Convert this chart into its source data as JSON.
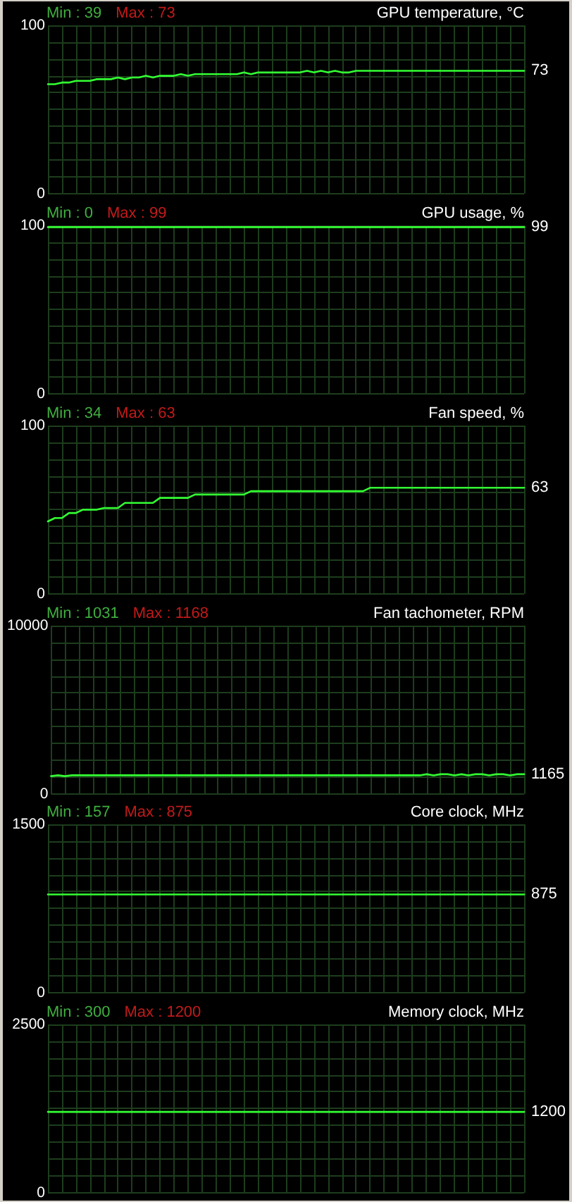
{
  "chart_data": [
    {
      "type": "line",
      "title": "GPU temperature, °C",
      "annotations": [
        "Min : 39",
        "Max : 73"
      ],
      "categories": [
        null,
        null,
        null,
        null,
        null,
        null,
        null,
        null,
        null,
        null,
        null,
        null,
        null,
        null,
        null,
        null,
        null,
        null,
        null,
        null,
        null,
        null,
        null,
        null,
        null,
        null,
        null,
        null,
        null,
        null,
        null,
        null,
        null,
        null,
        null,
        null,
        null,
        null,
        null,
        null,
        null,
        null,
        null,
        null,
        null,
        null,
        null,
        null,
        null,
        null,
        null,
        null,
        null,
        null,
        null,
        null,
        null,
        null,
        null,
        null,
        null,
        null,
        null,
        null,
        null,
        null,
        null,
        null,
        null
      ],
      "values": [
        65,
        65,
        66,
        66,
        67,
        67,
        67,
        68,
        68,
        68,
        69,
        68,
        69,
        69,
        70,
        69,
        70,
        70,
        70,
        71,
        70,
        71,
        71,
        71,
        71,
        71,
        71,
        71,
        72,
        71,
        72,
        72,
        72,
        72,
        72,
        72,
        72,
        73,
        72,
        73,
        72,
        73,
        72,
        72,
        73,
        73,
        73,
        73,
        73,
        73,
        73,
        73,
        73,
        73,
        73,
        73,
        73,
        73,
        73,
        73,
        73,
        73,
        73,
        73,
        73,
        73,
        73,
        73,
        73
      ],
      "value_labels": [
        null,
        null,
        null,
        null,
        null,
        null,
        null,
        null,
        null,
        null,
        null,
        null,
        null,
        null,
        null,
        null,
        null,
        null,
        null,
        null,
        null,
        null,
        null,
        null,
        null,
        null,
        null,
        null,
        null,
        null,
        null,
        null,
        null,
        null,
        null,
        null,
        null,
        null,
        null,
        null,
        null,
        null,
        null,
        null,
        null,
        null,
        null,
        null,
        null,
        null,
        null,
        null,
        null,
        null,
        null,
        null,
        null,
        null,
        null,
        null,
        null,
        null,
        null,
        null,
        null,
        null,
        null,
        null,
        "73"
      ],
      "color": "#33ff33",
      "ylim": [
        0,
        100
      ],
      "yticks": [
        0,
        {
          "value": 10,
          "label": null
        },
        {
          "value": 20,
          "label": null
        },
        {
          "value": 30,
          "label": null
        },
        {
          "value": 40,
          "label": null
        },
        {
          "value": 50,
          "label": null
        },
        {
          "value": 60,
          "label": null
        },
        {
          "value": 70,
          "label": null
        },
        {
          "value": 80,
          "label": null
        },
        {
          "value": 90,
          "label": null
        },
        100
      ],
      "grid": true,
      "tick_labels": "y",
      "marker": "none"
    },
    {
      "type": "line",
      "title": "GPU usage, %",
      "annotations": [
        "Min : 0",
        "Max : 99"
      ],
      "categories": [
        null,
        null,
        null,
        null,
        null,
        null,
        null,
        null,
        null,
        null,
        null,
        null,
        null,
        null,
        null,
        null,
        null,
        null,
        null,
        null,
        null,
        null,
        null,
        null,
        null,
        null,
        null,
        null,
        null,
        null,
        null,
        null,
        null,
        null,
        null,
        null,
        null,
        null,
        null,
        null,
        null,
        null,
        null,
        null,
        null,
        null,
        null,
        null,
        null,
        null,
        null,
        null,
        null,
        null,
        null,
        null,
        null,
        null,
        null,
        null,
        null,
        null,
        null,
        null,
        null,
        null,
        null,
        null,
        null
      ],
      "values": [
        99,
        99,
        99,
        99,
        99,
        99,
        99,
        99,
        99,
        99,
        99,
        99,
        99,
        99,
        99,
        99,
        99,
        99,
        99,
        99,
        99,
        99,
        99,
        99,
        99,
        99,
        99,
        99,
        99,
        99,
        99,
        99,
        99,
        99,
        99,
        99,
        99,
        99,
        99,
        99,
        99,
        99,
        99,
        99,
        99,
        99,
        99,
        99,
        99,
        99,
        99,
        99,
        99,
        99,
        99,
        99,
        99,
        99,
        99,
        99,
        99,
        99,
        99,
        99,
        99,
        99,
        99,
        99,
        99
      ],
      "value_labels": [
        null,
        null,
        null,
        null,
        null,
        null,
        null,
        null,
        null,
        null,
        null,
        null,
        null,
        null,
        null,
        null,
        null,
        null,
        null,
        null,
        null,
        null,
        null,
        null,
        null,
        null,
        null,
        null,
        null,
        null,
        null,
        null,
        null,
        null,
        null,
        null,
        null,
        null,
        null,
        null,
        null,
        null,
        null,
        null,
        null,
        null,
        null,
        null,
        null,
        null,
        null,
        null,
        null,
        null,
        null,
        null,
        null,
        null,
        null,
        null,
        null,
        null,
        null,
        null,
        null,
        null,
        null,
        null,
        "99"
      ],
      "color": "#33ff33",
      "ylim": [
        0,
        100
      ],
      "yticks": [
        0,
        {
          "value": 10,
          "label": null
        },
        {
          "value": 20,
          "label": null
        },
        {
          "value": 30,
          "label": null
        },
        {
          "value": 40,
          "label": null
        },
        {
          "value": 50,
          "label": null
        },
        {
          "value": 60,
          "label": null
        },
        {
          "value": 70,
          "label": null
        },
        {
          "value": 80,
          "label": null
        },
        {
          "value": 90,
          "label": null
        },
        100
      ],
      "grid": true,
      "tick_labels": "y",
      "marker": "none"
    },
    {
      "type": "line",
      "title": "Fan speed, %",
      "annotations": [
        "Min : 34",
        "Max : 63"
      ],
      "categories": [
        null,
        null,
        null,
        null,
        null,
        null,
        null,
        null,
        null,
        null,
        null,
        null,
        null,
        null,
        null,
        null,
        null,
        null,
        null,
        null,
        null,
        null,
        null,
        null,
        null,
        null,
        null,
        null,
        null,
        null,
        null,
        null,
        null,
        null,
        null,
        null,
        null,
        null,
        null,
        null,
        null,
        null,
        null,
        null,
        null,
        null,
        null,
        null,
        null,
        null,
        null,
        null,
        null,
        null,
        null,
        null,
        null,
        null,
        null,
        null,
        null,
        null,
        null,
        null,
        null,
        null,
        null,
        null,
        null
      ],
      "values": [
        43,
        45,
        45,
        48,
        48,
        50,
        50,
        50,
        51,
        51,
        51,
        54,
        54,
        54,
        54,
        54,
        57,
        57,
        57,
        57,
        57,
        59,
        59,
        59,
        59,
        59,
        59,
        59,
        59,
        61,
        61,
        61,
        61,
        61,
        61,
        61,
        61,
        61,
        61,
        61,
        61,
        61,
        61,
        61,
        61,
        61,
        63,
        63,
        63,
        63,
        63,
        63,
        63,
        63,
        63,
        63,
        63,
        63,
        63,
        63,
        63,
        63,
        63,
        63,
        63,
        63,
        63,
        63,
        63
      ],
      "value_labels": [
        null,
        null,
        null,
        null,
        null,
        null,
        null,
        null,
        null,
        null,
        null,
        null,
        null,
        null,
        null,
        null,
        null,
        null,
        null,
        null,
        null,
        null,
        null,
        null,
        null,
        null,
        null,
        null,
        null,
        null,
        null,
        null,
        null,
        null,
        null,
        null,
        null,
        null,
        null,
        null,
        null,
        null,
        null,
        null,
        null,
        null,
        null,
        null,
        null,
        null,
        null,
        null,
        null,
        null,
        null,
        null,
        null,
        null,
        null,
        null,
        null,
        null,
        null,
        null,
        null,
        null,
        null,
        null,
        "63"
      ],
      "color": "#33ff33",
      "ylim": [
        0,
        100
      ],
      "yticks": [
        0,
        {
          "value": 10,
          "label": null
        },
        {
          "value": 20,
          "label": null
        },
        {
          "value": 30,
          "label": null
        },
        {
          "value": 40,
          "label": null
        },
        {
          "value": 50,
          "label": null
        },
        {
          "value": 60,
          "label": null
        },
        {
          "value": 70,
          "label": null
        },
        {
          "value": 80,
          "label": null
        },
        {
          "value": 90,
          "label": null
        },
        100
      ],
      "grid": true,
      "tick_labels": "y",
      "marker": "none"
    },
    {
      "type": "line",
      "title": "Fan tachometer, RPM",
      "annotations": [
        "Min : 1031",
        "Max : 1168"
      ],
      "categories": [
        null,
        null,
        null,
        null,
        null,
        null,
        null,
        null,
        null,
        null,
        null,
        null,
        null,
        null,
        null,
        null,
        null,
        null,
        null,
        null,
        null,
        null,
        null,
        null,
        null,
        null,
        null,
        null,
        null,
        null,
        null,
        null,
        null,
        null,
        null,
        null,
        null,
        null,
        null,
        null,
        null,
        null,
        null,
        null,
        null,
        null,
        null,
        null,
        null,
        null,
        null,
        null,
        null,
        null,
        null,
        null,
        null,
        null,
        null,
        null,
        null,
        null,
        null,
        null,
        null,
        null,
        null,
        null,
        null
      ],
      "values": [
        1050,
        1100,
        1050,
        1100,
        1100,
        1100,
        1100,
        1100,
        1100,
        1100,
        1100,
        1100,
        1100,
        1100,
        1100,
        1100,
        1100,
        1100,
        1100,
        1100,
        1100,
        1100,
        1100,
        1100,
        1100,
        1100,
        1100,
        1100,
        1100,
        1100,
        1100,
        1100,
        1100,
        1100,
        1100,
        1100,
        1100,
        1100,
        1100,
        1100,
        1100,
        1100,
        1100,
        1100,
        1100,
        1100,
        1100,
        1100,
        1100,
        1100,
        1100,
        1100,
        1100,
        1100,
        1165,
        1100,
        1165,
        1165,
        1100,
        1165,
        1100,
        1165,
        1165,
        1100,
        1165,
        1165,
        1100,
        1165,
        1165
      ],
      "value_labels": [
        null,
        null,
        null,
        null,
        null,
        null,
        null,
        null,
        null,
        null,
        null,
        null,
        null,
        null,
        null,
        null,
        null,
        null,
        null,
        null,
        null,
        null,
        null,
        null,
        null,
        null,
        null,
        null,
        null,
        null,
        null,
        null,
        null,
        null,
        null,
        null,
        null,
        null,
        null,
        null,
        null,
        null,
        null,
        null,
        null,
        null,
        null,
        null,
        null,
        null,
        null,
        null,
        null,
        null,
        null,
        null,
        null,
        null,
        null,
        null,
        null,
        null,
        null,
        null,
        null,
        null,
        null,
        null,
        "1165"
      ],
      "color": "#33ff33",
      "ylim": [
        0,
        10000
      ],
      "yticks": [
        0,
        {
          "value": 1000,
          "label": null
        },
        {
          "value": 2000,
          "label": null
        },
        {
          "value": 3000,
          "label": null
        },
        {
          "value": 4000,
          "label": null
        },
        {
          "value": 5000,
          "label": null
        },
        {
          "value": 6000,
          "label": null
        },
        {
          "value": 7000,
          "label": null
        },
        {
          "value": 8000,
          "label": null
        },
        {
          "value": 9000,
          "label": null
        },
        10000
      ],
      "grid": true,
      "tick_labels": "y",
      "marker": "none"
    },
    {
      "type": "line",
      "title": "Core clock, MHz",
      "annotations": [
        "Min : 157",
        "Max : 875"
      ],
      "categories": [
        null,
        null,
        null,
        null,
        null,
        null,
        null,
        null,
        null,
        null,
        null,
        null,
        null,
        null,
        null,
        null,
        null,
        null,
        null,
        null,
        null,
        null,
        null,
        null,
        null,
        null,
        null,
        null,
        null,
        null,
        null,
        null,
        null,
        null,
        null,
        null,
        null,
        null,
        null,
        null,
        null,
        null,
        null,
        null,
        null,
        null,
        null,
        null,
        null,
        null,
        null,
        null,
        null,
        null,
        null,
        null,
        null,
        null,
        null,
        null,
        null,
        null,
        null,
        null,
        null,
        null,
        null,
        null,
        null
      ],
      "values": [
        875,
        875,
        875,
        875,
        875,
        875,
        875,
        875,
        875,
        875,
        875,
        875,
        875,
        875,
        875,
        875,
        875,
        875,
        875,
        875,
        875,
        875,
        875,
        875,
        875,
        875,
        875,
        875,
        875,
        875,
        875,
        875,
        875,
        875,
        875,
        875,
        875,
        875,
        875,
        875,
        875,
        875,
        875,
        875,
        875,
        875,
        875,
        875,
        875,
        875,
        875,
        875,
        875,
        875,
        875,
        875,
        875,
        875,
        875,
        875,
        875,
        875,
        875,
        875,
        875,
        875,
        875,
        875,
        875
      ],
      "value_labels": [
        null,
        null,
        null,
        null,
        null,
        null,
        null,
        null,
        null,
        null,
        null,
        null,
        null,
        null,
        null,
        null,
        null,
        null,
        null,
        null,
        null,
        null,
        null,
        null,
        null,
        null,
        null,
        null,
        null,
        null,
        null,
        null,
        null,
        null,
        null,
        null,
        null,
        null,
        null,
        null,
        null,
        null,
        null,
        null,
        null,
        null,
        null,
        null,
        null,
        null,
        null,
        null,
        null,
        null,
        null,
        null,
        null,
        null,
        null,
        null,
        null,
        null,
        null,
        null,
        null,
        null,
        null,
        null,
        "875"
      ],
      "color": "#33ff33",
      "ylim": [
        0,
        1500
      ],
      "yticks": [
        0,
        {
          "value": 150,
          "label": null
        },
        {
          "value": 300,
          "label": null
        },
        {
          "value": 450,
          "label": null
        },
        {
          "value": 600,
          "label": null
        },
        {
          "value": 750,
          "label": null
        },
        {
          "value": 900,
          "label": null
        },
        {
          "value": 1050,
          "label": null
        },
        {
          "value": 1200,
          "label": null
        },
        {
          "value": 1350,
          "label": null
        },
        1500
      ],
      "grid": true,
      "tick_labels": "y",
      "marker": "none"
    },
    {
      "type": "line",
      "title": "Memory clock, MHz",
      "annotations": [
        "Min : 300",
        "Max : 1200"
      ],
      "categories": [
        null,
        null,
        null,
        null,
        null,
        null,
        null,
        null,
        null,
        null,
        null,
        null,
        null,
        null,
        null,
        null,
        null,
        null,
        null,
        null,
        null,
        null,
        null,
        null,
        null,
        null,
        null,
        null,
        null,
        null,
        null,
        null,
        null,
        null,
        null,
        null,
        null,
        null,
        null,
        null,
        null,
        null,
        null,
        null,
        null,
        null,
        null,
        null,
        null,
        null,
        null,
        null,
        null,
        null,
        null,
        null,
        null,
        null,
        null,
        null,
        null,
        null,
        null,
        null,
        null,
        null,
        null,
        null,
        null
      ],
      "values": [
        1200,
        1200,
        1200,
        1200,
        1200,
        1200,
        1200,
        1200,
        1200,
        1200,
        1200,
        1200,
        1200,
        1200,
        1200,
        1200,
        1200,
        1200,
        1200,
        1200,
        1200,
        1200,
        1200,
        1200,
        1200,
        1200,
        1200,
        1200,
        1200,
        1200,
        1200,
        1200,
        1200,
        1200,
        1200,
        1200,
        1200,
        1200,
        1200,
        1200,
        1200,
        1200,
        1200,
        1200,
        1200,
        1200,
        1200,
        1200,
        1200,
        1200,
        1200,
        1200,
        1200,
        1200,
        1200,
        1200,
        1200,
        1200,
        1200,
        1200,
        1200,
        1200,
        1200,
        1200,
        1200,
        1200,
        1200,
        1200,
        1200
      ],
      "value_labels": [
        null,
        null,
        null,
        null,
        null,
        null,
        null,
        null,
        null,
        null,
        null,
        null,
        null,
        null,
        null,
        null,
        null,
        null,
        null,
        null,
        null,
        null,
        null,
        null,
        null,
        null,
        null,
        null,
        null,
        null,
        null,
        null,
        null,
        null,
        null,
        null,
        null,
        null,
        null,
        null,
        null,
        null,
        null,
        null,
        null,
        null,
        null,
        null,
        null,
        null,
        null,
        null,
        null,
        null,
        null,
        null,
        null,
        null,
        null,
        null,
        null,
        null,
        null,
        null,
        null,
        null,
        null,
        null,
        "1200"
      ],
      "color": "#33ff33",
      "ylim": [
        0,
        2500
      ],
      "yticks": [
        0,
        {
          "value": 250,
          "label": null
        },
        {
          "value": 500,
          "label": null
        },
        {
          "value": 750,
          "label": null
        },
        {
          "value": 1000,
          "label": null
        },
        {
          "value": 1250,
          "label": null
        },
        {
          "value": 1500,
          "label": null
        },
        {
          "value": 1750,
          "label": null
        },
        {
          "value": 2000,
          "label": null
        },
        {
          "value": 2250,
          "label": null
        },
        2500
      ],
      "grid": true,
      "tick_labels": "y",
      "marker": "none"
    }
  ]
}
